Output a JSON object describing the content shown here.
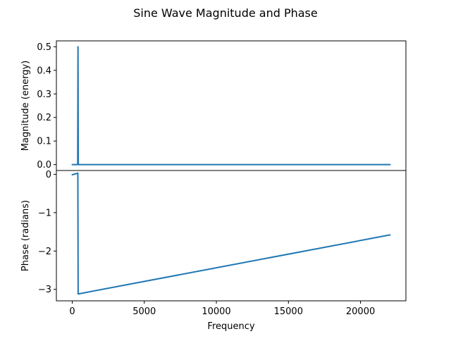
{
  "colors": {
    "background": "#ffffff",
    "axes": "#000000",
    "series": "#1f77b4"
  },
  "figure": {
    "title": "Sine Wave Magnitude and Phase"
  },
  "chart_data": [
    {
      "type": "line",
      "name": "magnitude-subplot",
      "title": "",
      "xlabel": "",
      "ylabel": "Magnitude (energy)",
      "xlim": [
        -1100,
        23150
      ],
      "ylim": [
        -0.025,
        0.525
      ],
      "xticks": [
        0,
        5000,
        10000,
        15000,
        20000
      ],
      "yticks": [
        0.0,
        0.1,
        0.2,
        0.3,
        0.4,
        0.5
      ],
      "ytick_labels": [
        "0.0",
        "0.1",
        "0.2",
        "0.3",
        "0.4",
        "0.5"
      ],
      "grid": false,
      "show_xtick_labels": false,
      "series": [
        {
          "color": "#1f77b4",
          "x": [
            0,
            380,
            400,
            420,
            440,
            22050
          ],
          "y": [
            0.0,
            0.0,
            0.5,
            0.0,
            0.0,
            0.0
          ]
        }
      ]
    },
    {
      "type": "line",
      "name": "phase-subplot",
      "title": "",
      "xlabel": "Frequency",
      "ylabel": "Phase (radians)",
      "xlim": [
        -1100,
        23150
      ],
      "ylim": [
        -3.3,
        0.1
      ],
      "xticks": [
        0,
        5000,
        10000,
        15000,
        20000
      ],
      "xtick_labels": [
        "0",
        "5000",
        "10000",
        "15000",
        "20000"
      ],
      "yticks": [
        0,
        -1,
        -2,
        -3
      ],
      "ytick_labels": [
        "0",
        "−1",
        "−2",
        "−3"
      ],
      "grid": false,
      "series": [
        {
          "color": "#1f77b4",
          "x": [
            0,
            300,
            390,
            410,
            22050
          ],
          "y": [
            -0.01,
            0.02,
            0.03,
            -3.12,
            -1.58
          ]
        }
      ]
    }
  ]
}
